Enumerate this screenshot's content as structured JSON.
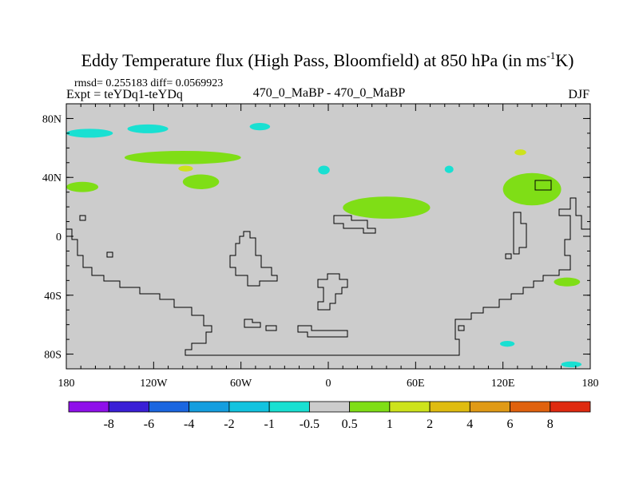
{
  "chart_data": {
    "type": "heatmap",
    "title": "Eddy Temperature flux (High Pass, Bloomfield) at 850 hPa (in ms",
    "title_sup": "-1",
    "title_end": "K)",
    "stats": "rmsd= 0.255183 diff= 0.0569923",
    "expt": "Expt = teYDq1-teYDq",
    "center_label": "470_0_MaBP - 470_0_MaBP",
    "season": "DJF",
    "x_ticks": [
      "180",
      "120W",
      "60W",
      "0",
      "60E",
      "120E",
      "180"
    ],
    "y_ticks": [
      "80N",
      "40N",
      "0",
      "40S",
      "80S"
    ],
    "xlim": [
      -180,
      180
    ],
    "ylim": [
      -90,
      90
    ],
    "background_bin": "-0.5 to 0.5",
    "levels": [
      "-8",
      "-6",
      "-4",
      "-2",
      "-1",
      "-0.5",
      "0.5",
      "1",
      "2",
      "4",
      "6",
      "8"
    ],
    "colors": [
      "#8f10ea",
      "#3a1fd6",
      "#1b66e0",
      "#159edf",
      "#12c3df",
      "#19e0d2",
      "#cccccc",
      "#7fde16",
      "#cde31c",
      "#dfbc10",
      "#e09a16",
      "#e0620e",
      "#df2a10"
    ],
    "regions": [
      {
        "bin": "-1 to -0.5",
        "lon": -180,
        "lat": 73,
        "dlon": 32,
        "dlat": 6
      },
      {
        "bin": "-1 to -0.5",
        "lon": -138,
        "lat": 76,
        "dlon": 28,
        "dlat": 6
      },
      {
        "bin": "-1 to -0.5",
        "lon": -54,
        "lat": 77,
        "dlon": 14,
        "dlat": 5
      },
      {
        "bin": "-1 to -0.5",
        "lon": -7,
        "lat": 48,
        "dlon": 8,
        "dlat": 6
      },
      {
        "bin": "-1 to -0.5",
        "lon": 80,
        "lat": 48,
        "dlon": 6,
        "dlat": 5
      },
      {
        "bin": "-1 to -0.5",
        "lon": 118,
        "lat": -71,
        "dlon": 10,
        "dlat": 4
      },
      {
        "bin": "-1 to -0.5",
        "lon": 160,
        "lat": -85,
        "dlon": 14,
        "dlat": 4
      },
      {
        "bin": "0.5 to 1",
        "lon": -140,
        "lat": 58,
        "dlon": 80,
        "dlat": 9
      },
      {
        "bin": "0.5 to 1",
        "lon": -100,
        "lat": 42,
        "dlon": 25,
        "dlat": 10
      },
      {
        "bin": "0.5 to 1",
        "lon": -180,
        "lat": 37,
        "dlon": 22,
        "dlat": 7
      },
      {
        "bin": "0.5 to 1",
        "lon": 10,
        "lat": 27,
        "dlon": 60,
        "dlat": 15
      },
      {
        "bin": "0.5 to 1",
        "lon": 120,
        "lat": 43,
        "dlon": 40,
        "dlat": 22
      },
      {
        "bin": "0.5 to 1",
        "lon": 155,
        "lat": -28,
        "dlon": 18,
        "dlat": 6
      },
      {
        "bin": "1 to 2",
        "lon": -103,
        "lat": 48,
        "dlon": 10,
        "dlat": 4
      },
      {
        "bin": "1 to 2",
        "lon": 128,
        "lat": 59,
        "dlon": 8,
        "dlat": 4
      }
    ]
  }
}
